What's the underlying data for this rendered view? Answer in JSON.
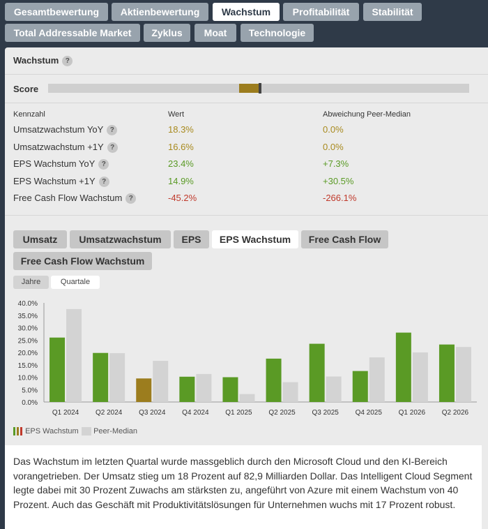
{
  "top_tabs": [
    {
      "label": "Gesamtbewertung",
      "active": false
    },
    {
      "label": "Aktienbewertung",
      "active": false
    },
    {
      "label": "Wachstum",
      "active": true
    },
    {
      "label": "Profitabilität",
      "active": false
    },
    {
      "label": "Stabilität",
      "active": false
    },
    {
      "label": "Total Addressable Market",
      "active": false
    },
    {
      "label": "Zyklus",
      "active": false
    },
    {
      "label": "Moat",
      "active": false
    },
    {
      "label": "Technologie",
      "active": false
    }
  ],
  "section": {
    "title": "Wachstum",
    "help": "?"
  },
  "score": {
    "label": "Score",
    "value": 0.5,
    "color": "#9c7d1e"
  },
  "kennzahlen": {
    "headers": {
      "name": "Kennzahl",
      "value": "Wert",
      "deviation": "Abweichung Peer-Median"
    },
    "rows": [
      {
        "name": "Umsatzwachstum YoY",
        "help": "?",
        "value": "18.3%",
        "value_color": "#a88a1e",
        "deviation": "0.0%",
        "deviation_color": "#a88a1e"
      },
      {
        "name": "Umsatzwachstum +1Y",
        "help": "?",
        "value": "16.6%",
        "value_color": "#a88a1e",
        "deviation": "0.0%",
        "deviation_color": "#a88a1e"
      },
      {
        "name": "EPS Wachstum YoY",
        "help": "?",
        "value": "23.4%",
        "value_color": "#5a9a25",
        "deviation": "+7.3%",
        "deviation_color": "#5a9a25"
      },
      {
        "name": "EPS Wachstum +1Y",
        "help": "?",
        "value": "14.9%",
        "value_color": "#5a9a25",
        "deviation": "+30.5%",
        "deviation_color": "#5a9a25"
      },
      {
        "name": "Free Cash Flow Wachstum",
        "help": "?",
        "value": "-45.2%",
        "value_color": "#c0392b",
        "deviation": "-266.1%",
        "deviation_color": "#c0392b"
      }
    ]
  },
  "chart_tabs": [
    {
      "label": "Umsatz",
      "active": false
    },
    {
      "label": "Umsatzwachstum",
      "active": false
    },
    {
      "label": "EPS",
      "active": false
    },
    {
      "label": "EPS Wachstum",
      "active": true
    },
    {
      "label": "Free Cash Flow",
      "active": false
    },
    {
      "label": "Free Cash Flow Wachstum",
      "active": false
    }
  ],
  "period_tabs": [
    {
      "label": "Jahre",
      "active": false
    },
    {
      "label": "Quartale",
      "active": true
    }
  ],
  "chart_data": {
    "type": "bar",
    "categories": [
      "Q1 2024",
      "Q2 2024",
      "Q3 2024",
      "Q4 2024",
      "Q1 2025",
      "Q2 2025",
      "Q3 2025",
      "Q4 2025",
      "Q1 2026",
      "Q2 2026"
    ],
    "series": [
      {
        "name": "EPS Wachstum",
        "values": [
          26.0,
          19.8,
          9.5,
          10.2,
          10.0,
          17.5,
          23.5,
          12.5,
          28.0,
          23.2
        ],
        "colors": [
          "#5a9a25",
          "#5a9a25",
          "#9c7d1e",
          "#5a9a25",
          "#5a9a25",
          "#5a9a25",
          "#5a9a25",
          "#5a9a25",
          "#5a9a25",
          "#5a9a25"
        ]
      },
      {
        "name": "Peer-Median",
        "values": [
          37.5,
          19.7,
          16.6,
          11.3,
          3.2,
          8.0,
          10.3,
          18.0,
          20.0,
          22.2
        ],
        "color": "#d3d3d3"
      }
    ],
    "y_ticks": [
      "0.0%",
      "5.0%",
      "10.0%",
      "15.0%",
      "20.0%",
      "25.0%",
      "30.0%",
      "35.0%",
      "40.0%"
    ],
    "ylim": [
      0,
      40
    ],
    "grid": false,
    "legend_position": "bottom-left"
  },
  "description": "Das Wachstum im letzten Quartal wurde massgeblich durch den Microsoft Cloud und den KI-Bereich vorangetrieben. Der Umsatz stieg um 18 Prozent auf 82,9 Milliarden Dollar. Das Intelligent Cloud Segment legte dabei mit 30 Prozent Zuwachs am stärksten zu, angeführt von Azure mit einem Wachstum von 40 Prozent. Auch das Geschäft mit Produktivitätslösungen für Unternehmen wuchs mit 17 Prozent robust."
}
